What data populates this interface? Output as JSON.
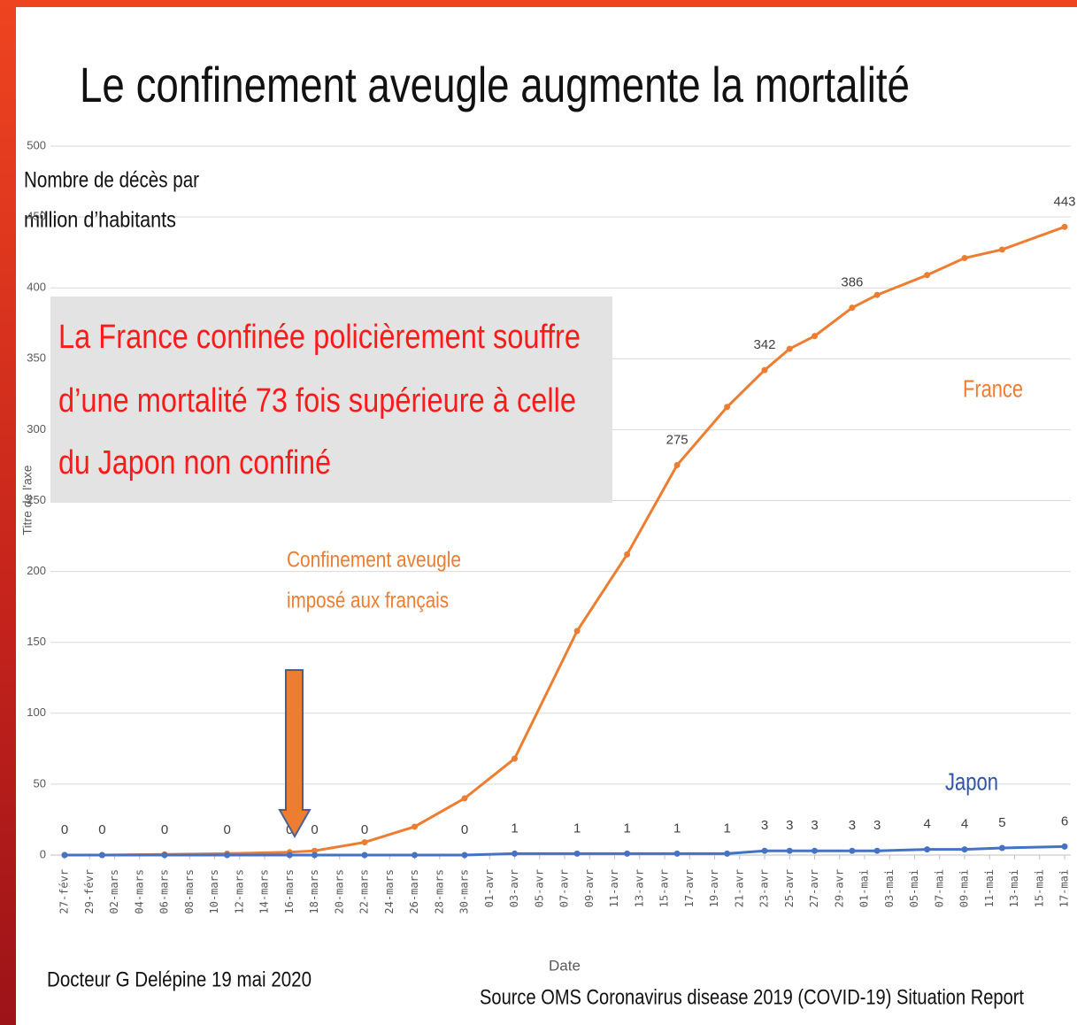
{
  "chart_data": {
    "type": "line",
    "title": "Le confinement aveugle augmente la mortalité",
    "ylabel": [
      "Nombre de décès par",
      "million d’habitants"
    ],
    "axis_title_y": "Titre de l'axe",
    "xlabel": "Date",
    "xlim": [
      0,
      80
    ],
    "xticks": [
      {
        "value": 0,
        "label": "27-févr"
      },
      {
        "value": 2,
        "label": "29-févr"
      },
      {
        "value": 4,
        "label": "02-mars"
      },
      {
        "value": 6,
        "label": "04-mars"
      },
      {
        "value": 8,
        "label": "06-mars"
      },
      {
        "value": 10,
        "label": "08-mars"
      },
      {
        "value": 12,
        "label": "10-mars"
      },
      {
        "value": 14,
        "label": "12-mars"
      },
      {
        "value": 16,
        "label": "14-mars"
      },
      {
        "value": 18,
        "label": "16-mars"
      },
      {
        "value": 20,
        "label": "18-mars"
      },
      {
        "value": 22,
        "label": "20-mars"
      },
      {
        "value": 24,
        "label": "22-mars"
      },
      {
        "value": 26,
        "label": "24-mars"
      },
      {
        "value": 28,
        "label": "26-mars"
      },
      {
        "value": 30,
        "label": "28-mars"
      },
      {
        "value": 32,
        "label": "30-mars"
      },
      {
        "value": 34,
        "label": "01-avr"
      },
      {
        "value": 36,
        "label": "03-avr"
      },
      {
        "value": 38,
        "label": "05-avr"
      },
      {
        "value": 40,
        "label": "07-avr"
      },
      {
        "value": 42,
        "label": "09-avr"
      },
      {
        "value": 44,
        "label": "11-avr"
      },
      {
        "value": 46,
        "label": "13-avr"
      },
      {
        "value": 48,
        "label": "15-avr"
      },
      {
        "value": 50,
        "label": "17-avr"
      },
      {
        "value": 52,
        "label": "19-avr"
      },
      {
        "value": 54,
        "label": "21-avr"
      },
      {
        "value": 56,
        "label": "23-avr"
      },
      {
        "value": 58,
        "label": "25-avr"
      },
      {
        "value": 60,
        "label": "27-avr"
      },
      {
        "value": 62,
        "label": "29-avr"
      },
      {
        "value": 64,
        "label": "01-mai"
      },
      {
        "value": 66,
        "label": "03-mai"
      },
      {
        "value": 68,
        "label": "05-mai"
      },
      {
        "value": 70,
        "label": "07-mai"
      },
      {
        "value": 72,
        "label": "09-mai"
      },
      {
        "value": 74,
        "label": "11-mai"
      },
      {
        "value": 76,
        "label": "13-mai"
      },
      {
        "value": 78,
        "label": "15-mai"
      },
      {
        "value": 80,
        "label": "17-mai"
      }
    ],
    "ylim": [
      0,
      500
    ],
    "yticks": [
      0,
      50,
      100,
      150,
      200,
      250,
      300,
      350,
      400,
      450,
      500
    ],
    "grid": true,
    "series": [
      {
        "name": "France",
        "color": "#ed7d31",
        "x": [
          0,
          3,
          8,
          13,
          18,
          20,
          24,
          28,
          32,
          36,
          41,
          45,
          49,
          53,
          56,
          58,
          60,
          63,
          65,
          69,
          72,
          75,
          80
        ],
        "values": [
          0,
          0,
          0.5,
          1,
          2,
          3,
          9,
          20,
          40,
          68,
          158,
          212,
          275,
          316,
          342,
          357,
          366,
          386,
          395,
          409,
          421,
          427,
          443
        ],
        "value_labels": [
          null,
          null,
          null,
          null,
          null,
          null,
          null,
          null,
          null,
          null,
          null,
          null,
          "275",
          null,
          "342",
          null,
          null,
          "386",
          null,
          null,
          null,
          null,
          "443"
        ]
      },
      {
        "name": "Japon",
        "color": "#4472c4",
        "x": [
          0,
          3,
          8,
          13,
          18,
          20,
          24,
          28,
          32,
          36,
          41,
          45,
          49,
          53,
          56,
          58,
          60,
          63,
          65,
          69,
          72,
          75,
          80
        ],
        "values": [
          0,
          0,
          0,
          0,
          0,
          0,
          0,
          0,
          0,
          1,
          1,
          1,
          1,
          1,
          3,
          3,
          3,
          3,
          3,
          4,
          4,
          5,
          6
        ],
        "value_labels": [
          "0",
          "0",
          "0",
          "0",
          "0",
          "0",
          "0",
          null,
          "0",
          "1",
          "1",
          "1",
          "1",
          "1",
          "3",
          "3",
          "3",
          "3",
          "3",
          "4",
          "4",
          "5",
          "6"
        ]
      }
    ],
    "annotations": [
      {
        "lines": [
          "La France confinée policièrement  souffre",
          "d’une mortalité 73 fois supérieure à celle",
          "du Japon non confiné"
        ]
      },
      {
        "lines": [
          "Confinement aveugle",
          "imposé aux français"
        ]
      }
    ],
    "author": "Docteur G Delépine 19 mai 2020",
    "source": "Source OMS Coronavirus disease 2019 (COVID-19) Situation Report"
  }
}
